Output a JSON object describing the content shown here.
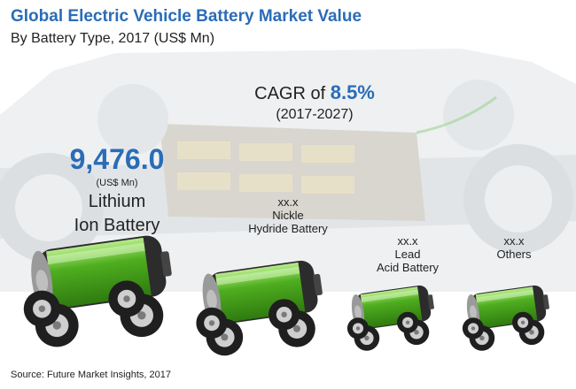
{
  "header": {
    "title": "Global Electric Vehicle Battery Market Value",
    "subtitle": "By Battery Type, 2017 (US$ Mn)"
  },
  "cagr": {
    "label": "CAGR of",
    "value": "8.5%",
    "period": "(2017-2027)"
  },
  "chart_data": {
    "type": "bar",
    "title": "Global Electric Vehicle Battery Market Value",
    "subtitle": "By Battery Type, 2017 (US$ Mn)",
    "categories": [
      "Lithium Ion Battery",
      "Nickle Hydride Battery",
      "Lead Acid Battery",
      "Others"
    ],
    "values": [
      9476.0,
      null,
      null,
      null
    ],
    "labels": [
      {
        "value": "9,476.0",
        "unit": "(US$ Mn)",
        "name": "Lithium Ion Battery"
      },
      {
        "value": "xx.x",
        "name": "Nickle Hydride Battery"
      },
      {
        "value": "xx.x",
        "name": "Lead Acid Battery"
      },
      {
        "value": "xx.x",
        "name": "Others"
      }
    ]
  },
  "lines": {
    "l0": [
      "Lithium",
      "Ion Battery"
    ],
    "l1": [
      "Nickle",
      "Hydride Battery"
    ],
    "l2": [
      "Lead",
      "Acid Battery"
    ],
    "l3": [
      "Others"
    ]
  },
  "source": "Source: Future Market Insights, 2017",
  "colors": {
    "accent": "#2a6cb7",
    "battery_green": "#4fae1f",
    "battery_dark": "#2c2c2c",
    "battery_cap": "#bfbfbf"
  }
}
